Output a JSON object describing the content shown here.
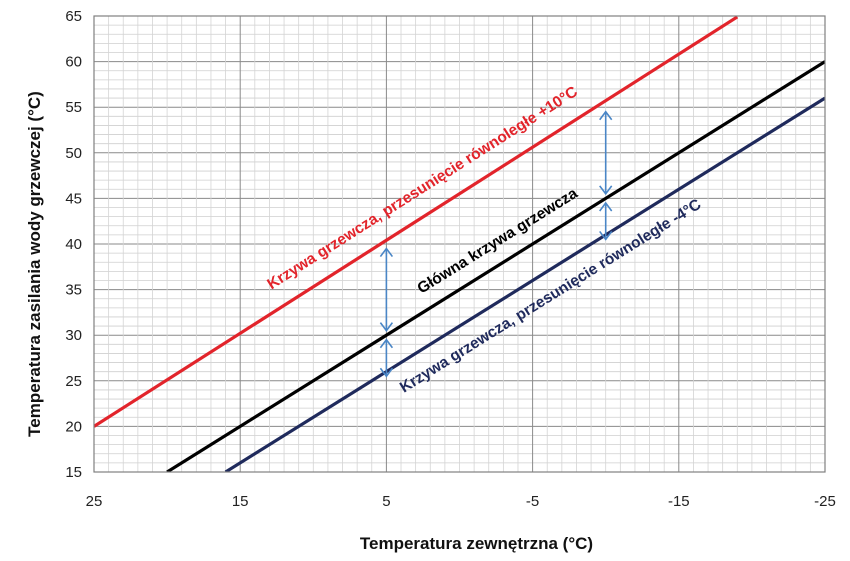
{
  "chart_data": {
    "type": "line",
    "xlabel": "Temperatura zewnętrzna  (°C)",
    "ylabel": "Temperatura zasilania wody grzewczej  (°C)",
    "xlim": [
      25,
      -25
    ],
    "ylim": [
      15,
      65
    ],
    "x_ticks": [
      "25",
      "15",
      "5",
      "-5",
      "-15",
      "-25"
    ],
    "y_ticks": [
      "15",
      "20",
      "25",
      "30",
      "35",
      "40",
      "45",
      "50",
      "55",
      "60",
      "65"
    ],
    "grid": true,
    "series": [
      {
        "name": "Krzywa grzewcza,  przesunięcie równoległe +10°C",
        "color": "#e2242b",
        "x": [
          25,
          -19
        ],
        "y": [
          20,
          64.9
        ]
      },
      {
        "name": "Główna krzywa grzewcza",
        "color": "#000000",
        "x": [
          20,
          -25
        ],
        "y": [
          15,
          60
        ]
      },
      {
        "name": "Krzywa grzewcza,  przesunięcie równoległe -4°C",
        "color": "#1f2a5c",
        "x": [
          16,
          -25
        ],
        "y": [
          15,
          56
        ]
      }
    ],
    "annotations": [
      {
        "type": "double-arrow",
        "x": 5,
        "y_from": 25.5,
        "y_to": 29.5,
        "color": "#4a86c6"
      },
      {
        "type": "double-arrow",
        "x": 5,
        "y_from": 30.5,
        "y_to": 39.5,
        "color": "#4a86c6"
      },
      {
        "type": "double-arrow",
        "x": -10,
        "y_from": 40.5,
        "y_to": 44.5,
        "color": "#4a86c6"
      },
      {
        "type": "double-arrow",
        "x": -10,
        "y_from": 45.5,
        "y_to": 54.5,
        "color": "#4a86c6"
      }
    ]
  }
}
